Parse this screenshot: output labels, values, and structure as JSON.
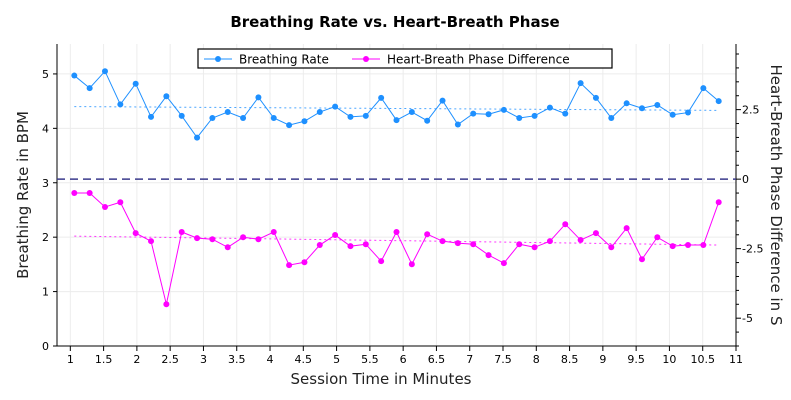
{
  "chart_data": {
    "type": "line",
    "title": "Breathing Rate vs. Heart-Breath Phase",
    "xlabel": "Session Time in Minutes",
    "ylabel": "Breathing Rate in BPM",
    "y2label": "Heart-Breath Phase Difference in S",
    "xlim": [
      0.8,
      11
    ],
    "ylim": [
      0,
      5.55
    ],
    "y2lim": [
      -6.0,
      4.86
    ],
    "xticks": [
      "1",
      "1.5",
      "2",
      "2.5",
      "3",
      "3.5",
      "4",
      "4.5",
      "5",
      "5.5",
      "6",
      "6.5",
      "7",
      "7.5",
      "8",
      "8.5",
      "9",
      "9.5",
      "10",
      "10.5",
      "11"
    ],
    "yticks": [
      "0",
      "1",
      "2",
      "3",
      "4",
      "5"
    ],
    "y2ticks": [
      "2.5",
      "0",
      "-2.5",
      "-5"
    ],
    "grid": true,
    "legend": "top-center",
    "reference_line": {
      "axis": "y2",
      "value": 0,
      "style": "dashed",
      "color": "#3a3a8c"
    },
    "series": [
      {
        "name": "Breathing Rate",
        "axis": "y",
        "color": "#1e90ff",
        "values": [
          4.97,
          4.74,
          5.05,
          4.44,
          4.82,
          4.21,
          4.59,
          4.23,
          3.83,
          4.19,
          4.3,
          4.19,
          4.57,
          4.19,
          4.06,
          4.13,
          4.3,
          4.4,
          4.21,
          4.23,
          4.56,
          4.15,
          4.3,
          4.14,
          4.51,
          4.07,
          4.27,
          4.26,
          4.34,
          4.19,
          4.23,
          4.38,
          4.27,
          4.83,
          4.56,
          4.19,
          4.46,
          4.37,
          4.43,
          4.25,
          4.29,
          4.74,
          4.5
        ],
        "trend": [
          4.4,
          4.33
        ]
      },
      {
        "name": "Heart-Breath Phase Difference",
        "axis": "y2",
        "color": "#ff00ff",
        "values": [
          -0.5,
          -0.5,
          -1.0,
          -0.83,
          -1.94,
          -2.23,
          -4.5,
          -1.9,
          -2.12,
          -2.16,
          -2.45,
          -2.09,
          -2.16,
          -1.9,
          -3.09,
          -2.99,
          -2.37,
          -2.01,
          -2.41,
          -2.34,
          -2.95,
          -1.9,
          -3.06,
          -1.98,
          -2.23,
          -2.3,
          -2.34,
          -2.73,
          -3.02,
          -2.34,
          -2.45,
          -2.23,
          -1.62,
          -2.19,
          -1.94,
          -2.45,
          -1.76,
          -2.88,
          -2.09,
          -2.41,
          -2.37,
          -2.37,
          -0.83
        ],
        "trend": [
          -2.05,
          -2.37
        ]
      }
    ],
    "x_start": 1.06,
    "x_end": 10.74
  }
}
